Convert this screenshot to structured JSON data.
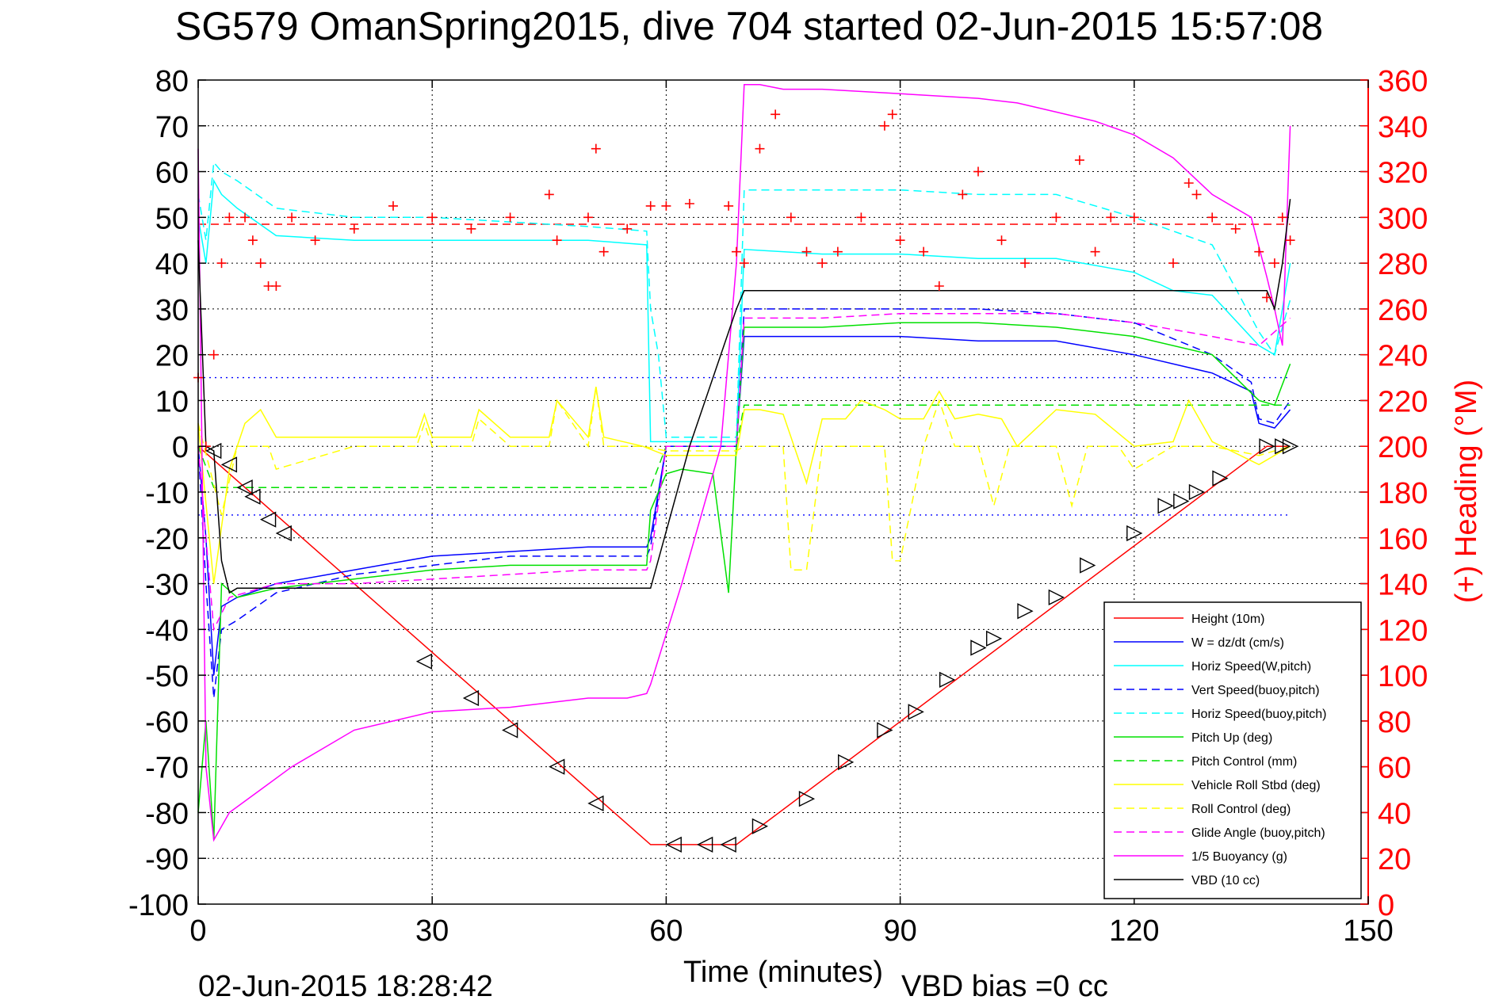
{
  "chart_data": {
    "type": "line",
    "title": "SG579 OmanSpring2015, dive 704 started 02-Jun-2015 15:57:08",
    "xlabel": "Time (minutes)",
    "ylabel_right": "(+) Heading (°M)",
    "footer_left": "02-Jun-2015 18:28:42",
    "footer_right": "VBD bias =0 cc",
    "xlim": [
      0,
      150
    ],
    "ylim": [
      -100,
      80
    ],
    "ylim_right": [
      0,
      360
    ],
    "x_ticks": [
      "0",
      "30",
      "60",
      "90",
      "120",
      "150"
    ],
    "y_ticks": [
      "80",
      "70",
      "60",
      "50",
      "40",
      "30",
      "20",
      "10",
      "0",
      "-10",
      "-20",
      "-30",
      "-40",
      "-50",
      "-60",
      "-70",
      "-80",
      "-90",
      "-100"
    ],
    "y_ticks_right": [
      "360",
      "340",
      "320",
      "300",
      "280",
      "260",
      "240",
      "220",
      "200",
      "180",
      "160",
      "140",
      "120",
      "100",
      "80",
      "60",
      "40",
      "20",
      "0"
    ],
    "grid": true,
    "legend_position": "bottom-right",
    "colors": {
      "red": "#ff0000",
      "blue": "#0000ff",
      "cyan": "#00ffff",
      "green": "#00e000",
      "yellow": "#ffff00",
      "magenta": "#ff00ff",
      "black": "#000000"
    },
    "series": [
      {
        "name": "Height (10m)",
        "color": "#ff0000",
        "dash": "solid",
        "x": [
          0,
          58,
          69,
          137,
          140
        ],
        "y": [
          0,
          -87,
          -87,
          0,
          0
        ]
      },
      {
        "name": "W = dz/dt (cm/s)",
        "color": "#0000ff",
        "dash": "solid",
        "x": [
          0,
          1,
          2,
          3,
          5,
          10,
          20,
          30,
          40,
          50,
          57.5,
          58,
          60,
          61,
          68,
          69,
          70,
          80,
          90,
          100,
          110,
          120,
          130,
          135,
          136,
          138,
          140
        ],
        "y": [
          0,
          -20,
          -50,
          -35,
          -33,
          -30,
          -27,
          -24,
          -23,
          -22,
          -22,
          -20,
          0,
          0,
          0,
          0,
          24,
          24,
          24,
          23,
          23,
          20,
          16,
          12,
          5,
          4,
          8
        ]
      },
      {
        "name": "Horiz Speed(W,pitch)",
        "color": "#00ffff",
        "dash": "solid",
        "x": [
          0,
          1,
          2,
          3,
          5,
          10,
          20,
          30,
          40,
          50,
          57.5,
          58,
          60,
          61,
          68,
          69,
          70,
          80,
          90,
          100,
          110,
          120,
          125,
          130,
          136,
          138,
          140
        ],
        "y": [
          50,
          40,
          58,
          55,
          52,
          46,
          45,
          45,
          45,
          45,
          44,
          1,
          1,
          1,
          1,
          1,
          43,
          42,
          42,
          41,
          41,
          38,
          34,
          33,
          22,
          20,
          40
        ]
      },
      {
        "name": "Vert Speed(buoy,pitch)",
        "color": "#0000ff",
        "dash": "dashed",
        "x": [
          0,
          1,
          2,
          3,
          5,
          10,
          20,
          30,
          40,
          50,
          57.5,
          58,
          60,
          61,
          68,
          69,
          70,
          80,
          90,
          100,
          110,
          120,
          130,
          135,
          136,
          138,
          140
        ],
        "y": [
          0,
          -30,
          -55,
          -40,
          -38,
          -32,
          -28,
          -26,
          -24,
          -24,
          -24,
          -22,
          0,
          0,
          0,
          0,
          30,
          30,
          30,
          30,
          29,
          27,
          20,
          14,
          6,
          5,
          10
        ]
      },
      {
        "name": "Horiz Speed(buoy,pitch)",
        "color": "#00ffff",
        "dash": "dashed",
        "x": [
          0,
          1,
          2,
          3,
          5,
          10,
          20,
          30,
          40,
          50,
          57.5,
          58,
          59,
          60,
          61,
          68,
          69,
          70,
          80,
          90,
          100,
          110,
          120,
          130,
          136,
          138,
          140
        ],
        "y": [
          55,
          45,
          62,
          60,
          58,
          52,
          50,
          50,
          49,
          48,
          47,
          30,
          20,
          2,
          2,
          2,
          2,
          56,
          56,
          56,
          55,
          55,
          50,
          44,
          25,
          20,
          32
        ]
      },
      {
        "name": "Pitch Up (deg)",
        "color": "#00e000",
        "dash": "solid",
        "x": [
          0,
          1,
          2,
          3,
          5,
          10,
          20,
          30,
          40,
          50,
          57.5,
          58,
          60,
          62,
          66,
          68,
          69,
          70,
          80,
          90,
          100,
          110,
          120,
          130,
          136,
          138,
          140
        ],
        "y": [
          -80,
          -60,
          -86,
          -30,
          -33,
          -31,
          -29,
          -27,
          -26,
          -26,
          -26,
          -14,
          -6,
          -5,
          -6,
          -32,
          0,
          26,
          26,
          27,
          27,
          26,
          24,
          20,
          10,
          9,
          18
        ]
      },
      {
        "name": "Pitch Control (mm)",
        "color": "#00e000",
        "dash": "dashed",
        "x": [
          0,
          2,
          58,
          60,
          69,
          70,
          140
        ],
        "y": [
          0,
          -9,
          -9,
          0,
          0,
          9,
          9
        ]
      },
      {
        "name": "Vehicle Roll Stbd (deg)",
        "color": "#ffff00",
        "dash": "solid",
        "x": [
          0,
          2,
          4,
          6,
          8,
          10,
          15,
          20,
          28,
          29,
          30,
          35,
          36,
          40,
          45,
          46,
          50,
          51,
          52,
          57,
          60,
          69,
          70,
          72,
          75,
          78,
          80,
          83,
          85,
          88,
          90,
          93,
          95,
          97,
          100,
          103,
          105,
          110,
          115,
          120,
          125,
          127,
          130,
          136,
          140
        ],
        "y": [
          5,
          -30,
          -5,
          5,
          8,
          2,
          2,
          2,
          2,
          7,
          2,
          2,
          8,
          2,
          2,
          10,
          2,
          13,
          2,
          0,
          -2,
          -2,
          8,
          8,
          7,
          -8,
          6,
          6,
          10,
          8,
          6,
          6,
          12,
          6,
          7,
          6,
          0,
          8,
          7,
          0,
          1,
          10,
          1,
          -4,
          0
        ]
      },
      {
        "name": "Roll Control (deg)",
        "color": "#ffff00",
        "dash": "dashed",
        "x": [
          0,
          3,
          5,
          9,
          10,
          20,
          28,
          29,
          30,
          35,
          36,
          40,
          45,
          46,
          50,
          51,
          52,
          57,
          60,
          69,
          70,
          75,
          76,
          78,
          80,
          88,
          89,
          90,
          93,
          95,
          97,
          100,
          102,
          104,
          110,
          112,
          114,
          118,
          120,
          125,
          130,
          136,
          140
        ],
        "y": [
          5,
          -15,
          0,
          0,
          -5,
          0,
          0,
          5,
          0,
          0,
          6,
          0,
          0,
          10,
          0,
          13,
          0,
          0,
          -1,
          -1,
          0,
          0,
          -27,
          -27,
          0,
          0,
          -25,
          -25,
          0,
          10,
          0,
          0,
          -13,
          0,
          0,
          -13,
          0,
          0,
          -5,
          0,
          0,
          -2,
          0
        ]
      },
      {
        "name": "Glide Angle (buoy,pitch)",
        "color": "#ff00ff",
        "dash": "dashed",
        "x": [
          0,
          2,
          4,
          10,
          20,
          30,
          40,
          50,
          57.5,
          58,
          60,
          69,
          70,
          80,
          90,
          100,
          110,
          120,
          130,
          136,
          140
        ],
        "y": [
          0,
          -40,
          -33,
          -30,
          -30,
          -29,
          -28,
          -27,
          -27,
          -25,
          0,
          0,
          28,
          28,
          29,
          29,
          29,
          27,
          24,
          22,
          28
        ]
      },
      {
        "name": "1/5 Buoyancy (g)",
        "color": "#ff00ff",
        "dash": "solid",
        "x": [
          0,
          1,
          2,
          4,
          8,
          12,
          20,
          30,
          40,
          50,
          55,
          57.5,
          58,
          62,
          67,
          69,
          70,
          72,
          75,
          80,
          90,
          100,
          105,
          110,
          115,
          120,
          125,
          130,
          135,
          137,
          138,
          139,
          140
        ],
        "y": [
          65,
          -70,
          -86,
          -80,
          -75,
          -70,
          -62,
          -58,
          -57,
          -55,
          -55,
          -54,
          -52,
          -30,
          0,
          40,
          79,
          79,
          78,
          78,
          77,
          76,
          75,
          73,
          71,
          68,
          63,
          55,
          50,
          37,
          30,
          22,
          70
        ]
      },
      {
        "name": "VBD (10 cc)",
        "color": "#000000",
        "dash": "solid",
        "x": [
          0,
          1,
          2,
          3,
          4,
          5,
          57.5,
          58,
          63,
          69,
          70,
          137,
          138,
          139,
          140
        ],
        "y": [
          45,
          0,
          -1,
          -25,
          -32,
          -31,
          -31,
          -31,
          0,
          30,
          34,
          34,
          30,
          40,
          54
        ]
      },
      {
        "name": "Heading",
        "color": "#ff0000",
        "marker": "plus",
        "axis": "right",
        "x": [
          0,
          1,
          2,
          3,
          4,
          6,
          7,
          8,
          9,
          10,
          12,
          15,
          20,
          25,
          30,
          35,
          40,
          45,
          46,
          50,
          51,
          52,
          55,
          58,
          60,
          63,
          68,
          69,
          70,
          72,
          74,
          76,
          78,
          80,
          82,
          85,
          88,
          89,
          90,
          93,
          95,
          98,
          100,
          103,
          106,
          110,
          113,
          115,
          117,
          120,
          125,
          127,
          128,
          130,
          133,
          136,
          137,
          138,
          139,
          140
        ],
        "y": [
          230,
          200,
          240,
          280,
          300,
          300,
          290,
          280,
          270,
          270,
          300,
          290,
          295,
          305,
          300,
          295,
          300,
          310,
          290,
          300,
          330,
          285,
          295,
          305,
          305,
          306,
          305,
          285,
          280,
          330,
          345,
          300,
          285,
          280,
          285,
          300,
          340,
          345,
          290,
          285,
          270,
          310,
          320,
          290,
          280,
          300,
          325,
          285,
          300,
          300,
          280,
          315,
          310,
          300,
          295,
          285,
          265,
          280,
          300,
          290
        ]
      }
    ],
    "reference_lines": [
      {
        "color": "#ff0000",
        "dash": "dashed",
        "axis": "right",
        "y": 297,
        "x": [
          0,
          140
        ]
      },
      {
        "color": "#0000ff",
        "dash": "dotted",
        "axis": "left",
        "y": 15,
        "x": [
          0,
          140
        ]
      },
      {
        "color": "#0000ff",
        "dash": "dotted",
        "axis": "left",
        "y": -15,
        "x": [
          0,
          140
        ]
      }
    ],
    "markers": {
      "descent_triangles_left": {
        "x": [
          2,
          4,
          6,
          7,
          9,
          11,
          29,
          35,
          40,
          46,
          51,
          61,
          65,
          68
        ],
        "y": [
          -1,
          -4,
          -9,
          -11,
          -16,
          -19,
          -47,
          -55,
          -62,
          -70,
          -78,
          -87,
          -87,
          -87
        ]
      },
      "ascent_triangles_right": {
        "x": [
          72,
          78,
          83,
          88,
          92,
          96,
          100,
          102,
          106,
          110,
          114,
          120,
          124,
          126,
          128,
          131,
          137,
          139,
          140
        ],
        "y": [
          -83,
          -77,
          -69,
          -62,
          -58,
          -51,
          -44,
          -42,
          -36,
          -33,
          -26,
          -19,
          -13,
          -12,
          -10,
          -7,
          0,
          0,
          0
        ]
      }
    }
  }
}
